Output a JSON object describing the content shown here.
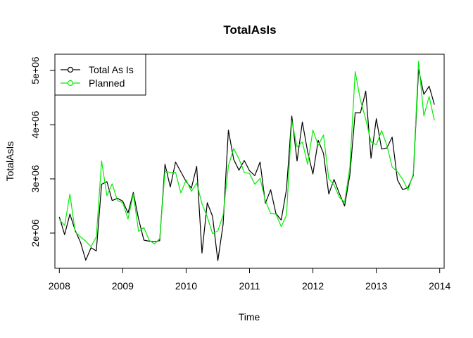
{
  "chart_data": {
    "type": "line",
    "title": "TotalAsIs",
    "xlabel": "Time",
    "ylabel": "TotalAsIs",
    "xlim": [
      2007.93,
      2014.07
    ],
    "ylim": [
      1350000,
      5300000
    ],
    "x_ticks": [
      2008,
      2009,
      2010,
      2011,
      2012,
      2013,
      2014
    ],
    "x_tick_labels": [
      "2008",
      "2009",
      "2010",
      "2011",
      "2012",
      "2013",
      "2014"
    ],
    "y_ticks": [
      2000000,
      3000000,
      4000000,
      5000000
    ],
    "y_tick_labels": [
      "2e+06",
      "3e+06",
      "4e+06",
      "5e+06"
    ],
    "x_start": 2008,
    "x_step": 0.08333333,
    "legend_position": "top-left",
    "series": [
      {
        "name": "Total As Is",
        "color": "#000000",
        "values": [
          2300000,
          1970000,
          2350000,
          2050000,
          1830000,
          1500000,
          1730000,
          1670000,
          2900000,
          2950000,
          2600000,
          2640000,
          2590000,
          2370000,
          2750000,
          2260000,
          1870000,
          1850000,
          1840000,
          1860000,
          3270000,
          2850000,
          3310000,
          3130000,
          2950000,
          2830000,
          3230000,
          1630000,
          2560000,
          2310000,
          1490000,
          2160000,
          3900000,
          3360000,
          3160000,
          3340000,
          3150000,
          3060000,
          3310000,
          2550000,
          2800000,
          2360000,
          2240000,
          2810000,
          4160000,
          3330000,
          4050000,
          3500000,
          3090000,
          3710000,
          3470000,
          2720000,
          2990000,
          2730000,
          2500000,
          3080000,
          4220000,
          4220000,
          4620000,
          3380000,
          4110000,
          3550000,
          3570000,
          3770000,
          2980000,
          2800000,
          2840000,
          3060000,
          5020000,
          4560000,
          4710000,
          4370000
        ]
      },
      {
        "name": "Planned",
        "color": "#00ee00",
        "values": [
          2250000,
          2140000,
          2720000,
          2020000,
          1930000,
          1850000,
          1750000,
          1930000,
          3330000,
          2690000,
          2910000,
          2600000,
          2560000,
          2260000,
          2720000,
          2030000,
          2100000,
          1870000,
          1800000,
          1900000,
          3140000,
          3120000,
          3120000,
          2740000,
          2980000,
          2770000,
          2920000,
          2540000,
          2300000,
          1990000,
          2040000,
          2330000,
          3240000,
          3560000,
          3370000,
          3120000,
          3100000,
          2900000,
          3010000,
          2600000,
          2360000,
          2350000,
          2120000,
          2330000,
          4070000,
          3590000,
          3680000,
          3270000,
          3900000,
          3620000,
          3810000,
          3000000,
          2890000,
          2660000,
          2570000,
          3220000,
          4980000,
          4450000,
          4100000,
          3680000,
          3630000,
          3890000,
          3620000,
          3220000,
          3130000,
          2990000,
          2790000,
          3090000,
          5170000,
          4160000,
          4520000,
          4080000
        ]
      }
    ]
  }
}
